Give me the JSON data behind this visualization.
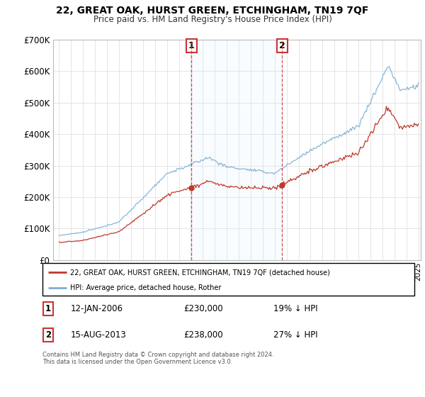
{
  "title": "22, GREAT OAK, HURST GREEN, ETCHINGHAM, TN19 7QF",
  "subtitle": "Price paid vs. HM Land Registry's House Price Index (HPI)",
  "ylim": [
    0,
    700000
  ],
  "yticks": [
    0,
    100000,
    200000,
    300000,
    400000,
    500000,
    600000,
    700000
  ],
  "ytick_labels": [
    "£0",
    "£100K",
    "£200K",
    "£300K",
    "£400K",
    "£500K",
    "£600K",
    "£700K"
  ],
  "sale1": {
    "date": "12-JAN-2006",
    "price": 230000,
    "label": "19% ↓ HPI",
    "num": "1"
  },
  "sale2": {
    "date": "15-AUG-2013",
    "price": 238000,
    "label": "27% ↓ HPI",
    "num": "2"
  },
  "sale1_x": 2006.04,
  "sale2_x": 2013.62,
  "legend_line1": "22, GREAT OAK, HURST GREEN, ETCHINGHAM, TN19 7QF (detached house)",
  "legend_line2": "HPI: Average price, detached house, Rother",
  "footer": "Contains HM Land Registry data © Crown copyright and database right 2024.\nThis data is licensed under the Open Government Licence v3.0.",
  "hpi_color": "#7bafd4",
  "property_color": "#c0392b",
  "vline_color": "#cc3333",
  "grid_color": "#e0e0e0",
  "shade_color": "#ddeeff",
  "xmin": 1995.0,
  "xmax": 2025.2
}
